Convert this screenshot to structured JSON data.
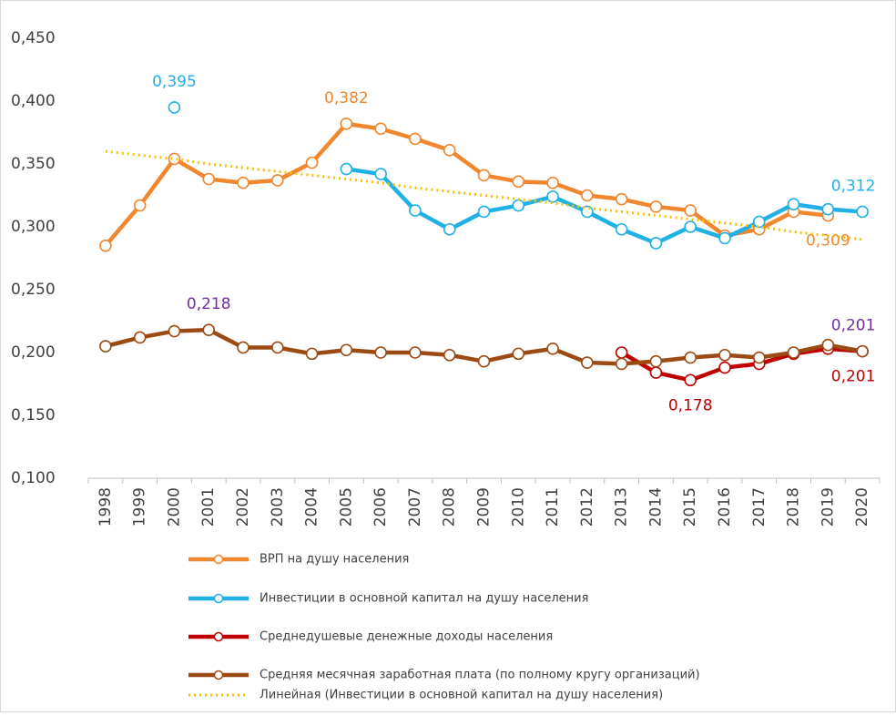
{
  "chart_data": {
    "type": "line",
    "categories": [
      "1998",
      "1999",
      "2000",
      "2001",
      "2002",
      "2003",
      "2004",
      "2005",
      "2006",
      "2007",
      "2008",
      "2009",
      "2010",
      "2011",
      "2012",
      "2013",
      "2014",
      "2015",
      "2016",
      "2017",
      "2018",
      "2019",
      "2020"
    ],
    "ylim": [
      0.1,
      0.45
    ],
    "yticks": [
      {
        "value": 0.1,
        "label": "0,100"
      },
      {
        "value": 0.15,
        "label": "0,150"
      },
      {
        "value": 0.2,
        "label": "0,200"
      },
      {
        "value": 0.25,
        "label": "0,250"
      },
      {
        "value": 0.3,
        "label": "0,300"
      },
      {
        "value": 0.35,
        "label": "0,350"
      },
      {
        "value": 0.4,
        "label": "0,400"
      },
      {
        "value": 0.45,
        "label": "0,450"
      }
    ],
    "grid": false,
    "legend": "bottom",
    "series": [
      {
        "name": "ВРП на душу населения",
        "color": "#f0862e",
        "label_color": "#f0862e",
        "markers": true,
        "values": [
          0.285,
          0.317,
          0.354,
          0.338,
          0.335,
          0.337,
          0.351,
          0.382,
          0.378,
          0.37,
          0.361,
          0.341,
          0.336,
          0.335,
          0.325,
          0.322,
          0.316,
          0.313,
          0.293,
          0.298,
          0.312,
          0.309,
          null
        ],
        "value_labels": [
          null,
          null,
          null,
          null,
          null,
          null,
          null,
          "0,382",
          null,
          null,
          null,
          null,
          null,
          null,
          null,
          null,
          null,
          null,
          null,
          null,
          null,
          "0,309",
          null
        ]
      },
      {
        "name": "Инвестиции в основной капитал на душу населения",
        "color": "#1fb0e6",
        "label_color": "#1fb0e6",
        "markers": true,
        "values": [
          null,
          null,
          0.395,
          null,
          null,
          null,
          null,
          0.346,
          0.342,
          0.313,
          0.298,
          0.312,
          0.317,
          0.324,
          0.312,
          0.298,
          0.287,
          0.3,
          0.291,
          0.304,
          0.318,
          0.314,
          0.312
        ],
        "value_labels": [
          null,
          null,
          "0,395",
          null,
          null,
          null,
          null,
          null,
          null,
          null,
          null,
          null,
          null,
          null,
          null,
          null,
          null,
          null,
          null,
          null,
          null,
          null,
          "0,312"
        ]
      },
      {
        "name": "Среднедушевые денежные доходы населения",
        "color": "#c00000",
        "label_color": "#c00000",
        "markers": true,
        "values": [
          null,
          null,
          null,
          null,
          null,
          null,
          null,
          null,
          null,
          null,
          null,
          null,
          null,
          null,
          null,
          0.2,
          0.184,
          0.178,
          0.188,
          0.191,
          0.199,
          0.203,
          0.201
        ],
        "value_labels": [
          null,
          null,
          null,
          null,
          null,
          null,
          null,
          null,
          null,
          null,
          null,
          null,
          null,
          null,
          null,
          null,
          null,
          "0,178",
          null,
          null,
          null,
          null,
          "0,201"
        ]
      },
      {
        "name": "Средняя месячная заработная плата (по полному кругу организаций)",
        "color": "#9c4a14",
        "label_color": "#7030a0",
        "markers": true,
        "values": [
          0.205,
          0.212,
          0.217,
          0.218,
          0.204,
          0.204,
          0.199,
          0.202,
          0.2,
          0.2,
          0.198,
          0.193,
          0.199,
          0.203,
          0.192,
          0.191,
          0.193,
          0.196,
          0.198,
          0.196,
          0.2,
          0.206,
          0.201
        ],
        "value_labels": [
          null,
          null,
          null,
          "0,218",
          null,
          null,
          null,
          null,
          null,
          null,
          null,
          null,
          null,
          null,
          null,
          null,
          null,
          null,
          null,
          null,
          null,
          null,
          "0,201"
        ]
      },
      {
        "name": "Линейная (Инвестиции в основной капитал на душу населения)",
        "color": "#f9c000",
        "dotted": true,
        "markers": false,
        "values": [
          0.36,
          0.357,
          0.354,
          0.35,
          0.347,
          0.344,
          0.341,
          0.338,
          0.335,
          0.331,
          0.328,
          0.325,
          0.322,
          0.319,
          0.315,
          0.312,
          0.309,
          0.306,
          0.303,
          0.3,
          0.296,
          0.293,
          0.29
        ]
      }
    ]
  }
}
